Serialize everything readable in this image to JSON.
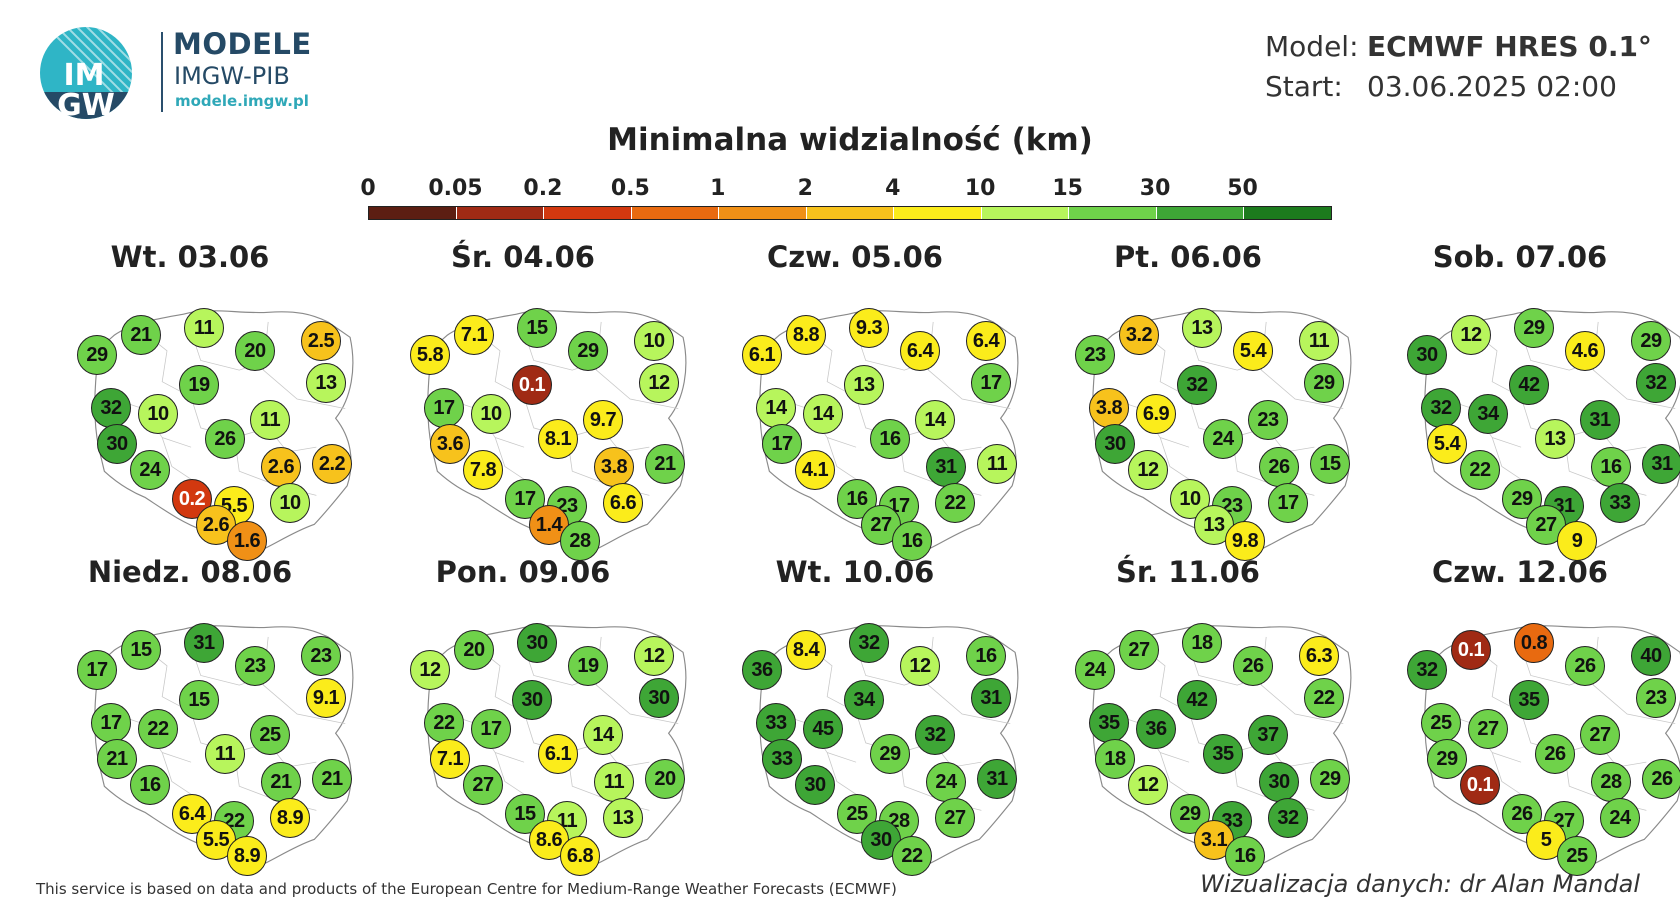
{
  "brand": {
    "logo_text_top": "IM",
    "logo_text_bottom": "GW",
    "title": "MODELE",
    "subtitle": "IMGW-PIB",
    "url": "modele.imgw.pl",
    "colors": {
      "navy": "#254a66",
      "teal": "#2fa8b8"
    }
  },
  "model_info": {
    "model_label": "Model:",
    "model_value": "ECMWF HRES 0.1°",
    "start_label": "Start:",
    "start_value": "03.06.2025 02:00"
  },
  "legend": {
    "title": "Minimalna widzialność (km)",
    "ticks": [
      "0",
      "0.05",
      "0.2",
      "0.5",
      "1",
      "2",
      "4",
      "10",
      "15",
      "30",
      "50"
    ],
    "colors": [
      "#5c1e12",
      "#a02a14",
      "#d2380f",
      "#e86a10",
      "#f09016",
      "#f7c21c",
      "#fbec1b",
      "#b7f55c",
      "#6fd24a",
      "#3ea636",
      "#1c7b1d"
    ]
  },
  "panels": [
    {
      "title": "Wt. 03.06",
      "values": [
        "21",
        "11",
        "29",
        "20",
        "2.5",
        "13",
        "19",
        "32",
        "10",
        "11",
        "30",
        "26",
        "24",
        "2.6",
        "2.2",
        "0.2",
        "5.5",
        "10",
        "2.6",
        "1.6"
      ]
    },
    {
      "title": "Śr. 04.06",
      "values": [
        "7.1",
        "15",
        "5.8",
        "29",
        "10",
        "12",
        "0.1",
        "17",
        "10",
        "9.7",
        "3.6",
        "8.1",
        "7.8",
        "3.8",
        "21",
        "17",
        "23",
        "6.6",
        "1.4",
        "28"
      ]
    },
    {
      "title": "Czw. 05.06",
      "values": [
        "8.8",
        "9.3",
        "6.1",
        "6.4",
        "6.4",
        "17",
        "13",
        "14",
        "14",
        "14",
        "17",
        "16",
        "4.1",
        "31",
        "11",
        "16",
        "17",
        "22",
        "27",
        "16"
      ]
    },
    {
      "title": "Pt. 06.06",
      "values": [
        "3.2",
        "13",
        "23",
        "5.4",
        "11",
        "29",
        "32",
        "3.8",
        "6.9",
        "23",
        "30",
        "24",
        "12",
        "26",
        "15",
        "10",
        "23",
        "17",
        "13",
        "9.8"
      ]
    },
    {
      "title": "Sob. 07.06",
      "values": [
        "12",
        "29",
        "30",
        "4.6",
        "29",
        "32",
        "42",
        "32",
        "34",
        "31",
        "5.4",
        "13",
        "22",
        "16",
        "31",
        "29",
        "31",
        "33",
        "27",
        "9"
      ]
    },
    {
      "title": "Niedz. 08.06",
      "values": [
        "15",
        "31",
        "17",
        "23",
        "23",
        "9.1",
        "15",
        "17",
        "22",
        "25",
        "21",
        "11",
        "16",
        "21",
        "21",
        "6.4",
        "22",
        "8.9",
        "5.5",
        "8.9"
      ]
    },
    {
      "title": "Pon. 09.06",
      "values": [
        "20",
        "30",
        "12",
        "19",
        "12",
        "30",
        "30",
        "22",
        "17",
        "14",
        "7.1",
        "6.1",
        "27",
        "11",
        "20",
        "15",
        "11",
        "13",
        "8.6",
        "6.8"
      ]
    },
    {
      "title": "Wt. 10.06",
      "values": [
        "8.4",
        "32",
        "36",
        "12",
        "16",
        "31",
        "34",
        "33",
        "45",
        "32",
        "33",
        "29",
        "30",
        "24",
        "31",
        "25",
        "28",
        "27",
        "30",
        "22"
      ]
    },
    {
      "title": "Śr. 11.06",
      "values": [
        "27",
        "18",
        "24",
        "26",
        "6.3",
        "22",
        "42",
        "35",
        "36",
        "37",
        "18",
        "35",
        "12",
        "30",
        "29",
        "29",
        "33",
        "32",
        "3.1",
        "16"
      ]
    },
    {
      "title": "Czw. 12.06",
      "values": [
        "0.1",
        "0.8",
        "32",
        "26",
        "40",
        "23",
        "35",
        "25",
        "27",
        "27",
        "29",
        "26",
        "0.1",
        "28",
        "26",
        "26",
        "27",
        "24",
        "5",
        "25"
      ]
    }
  ],
  "footer": {
    "left": "This service is based on data and products of the European Centre for Medium-Range Weather Forecasts (ECMWF)",
    "right": "Wizualizacja danych: dr Alan Mandal"
  }
}
